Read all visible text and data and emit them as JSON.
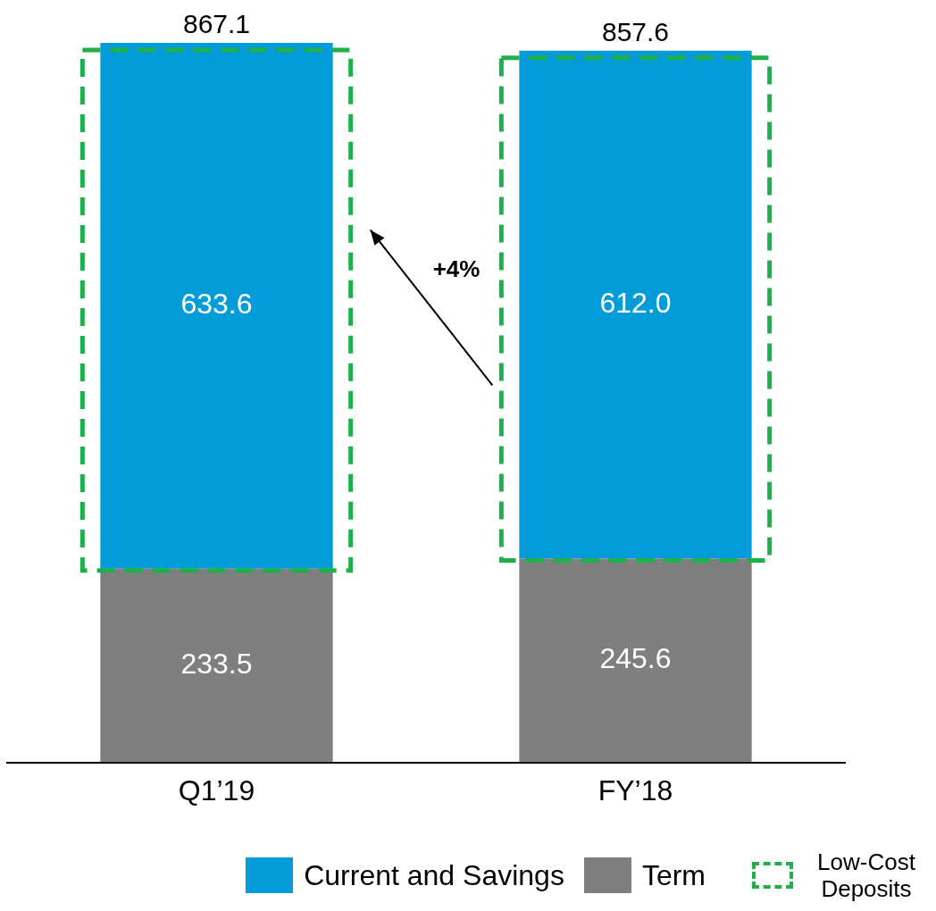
{
  "chart_data": {
    "type": "bar",
    "stacked": true,
    "categories": [
      "Q1’19",
      "FY’18"
    ],
    "series": [
      {
        "name": "Term",
        "color": "#7f7f7f",
        "values": [
          233.5,
          245.6
        ],
        "value_labels": [
          "233.5",
          "245.6"
        ]
      },
      {
        "name": "Current and Savings",
        "color": "#039bd8",
        "values": [
          633.6,
          612.0
        ],
        "value_labels": [
          "633.6",
          "612.0"
        ]
      }
    ],
    "totals": [
      "867.1",
      "857.6"
    ],
    "annotations": [
      "+4%",
      "Low-Cost Deposits"
    ],
    "grid": false,
    "legend": "bottom right",
    "tick_labels": "x"
  }
}
